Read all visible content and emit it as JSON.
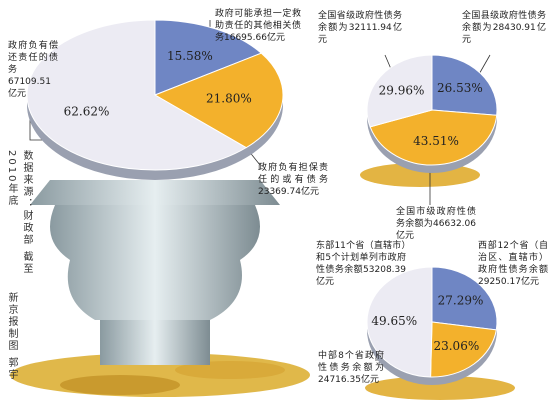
{
  "chart_data": [
    {
      "type": "pie",
      "categories": [
        "政府可能承担一定救助责任的其他相关债务16695.66亿元",
        "政府负有担保责任的或有债务23369.74亿元",
        "政府负有偿还责任的债务67109.51亿元"
      ],
      "values": [
        15.58,
        21.8,
        62.62
      ],
      "value_labels": [
        "15.58%",
        "21.80%",
        "62.62%"
      ],
      "colors": [
        "#6f86c4",
        "#f3b12c",
        "#ecebf3"
      ]
    },
    {
      "type": "pie",
      "categories": [
        "全国县级政府性债务余额为28430.91亿元",
        "全国市级政府性债务余额为46632.06亿元",
        "全国省级政府性债务余额为32111.94亿元"
      ],
      "values": [
        26.53,
        43.51,
        29.96
      ],
      "value_labels": [
        "26.53%",
        "43.51%",
        "29.96%"
      ],
      "colors": [
        "#6f86c4",
        "#f3b12c",
        "#ecebf3"
      ]
    },
    {
      "type": "pie",
      "categories": [
        "西部12个省（自治区、直辖市）政府性债务余额29250.17亿元",
        "中部8个省政府性债务余额为24716.35亿元",
        "东部11个省（直辖市）和5个计划单列市政府性债务余额53208.39亿元"
      ],
      "values": [
        27.29,
        23.06,
        49.65
      ],
      "value_labels": [
        "27.29%",
        "23.06%",
        "49.65%"
      ],
      "colors": [
        "#6f86c4",
        "#f3b12c",
        "#ecebf3"
      ]
    }
  ],
  "source": "数据来源：财政部 截至2010年底",
  "credit": "新京报制图 郭宇"
}
